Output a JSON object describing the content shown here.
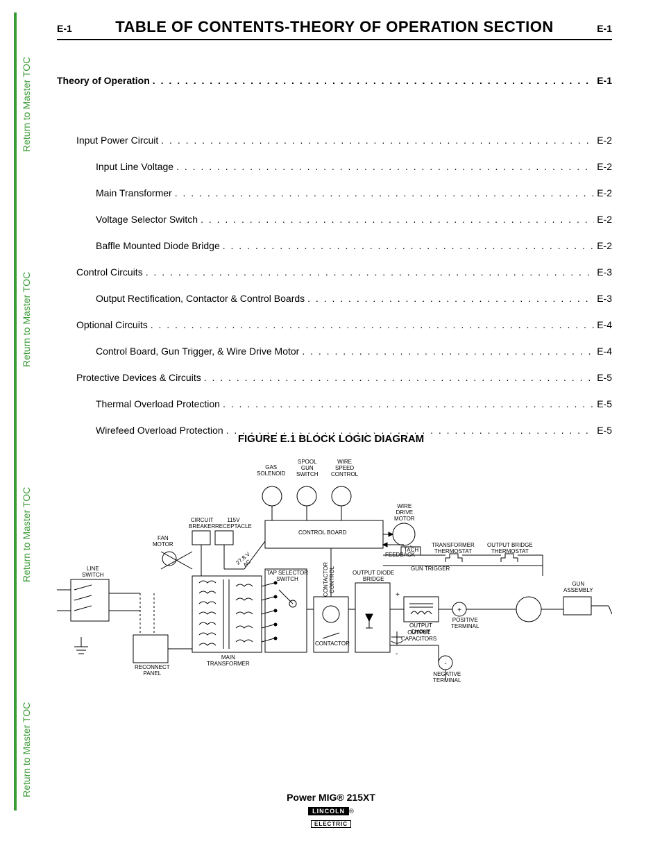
{
  "page_marker": "E-1",
  "title": "TABLE OF CONTENTS-THEORY OF OPERATION SECTION",
  "side_link_label": "Return to Master TOC",
  "toc": [
    {
      "label": "Theory of Operation",
      "page": "E-1",
      "level": 0,
      "bold": true
    },
    {
      "label": "Input Power Circuit",
      "page": "E-2",
      "level": 1
    },
    {
      "label": "Input Line Voltage",
      "page": "E-2",
      "level": 2
    },
    {
      "label": "Main Transformer",
      "page": "E-2",
      "level": 2
    },
    {
      "label": "Voltage Selector Switch",
      "page": "E-2",
      "level": 2
    },
    {
      "label": "Baffle Mounted Diode Bridge",
      "page": "E-2",
      "level": 2
    },
    {
      "label": "Control Circuits",
      "page": "E-3",
      "level": 1
    },
    {
      "label": "Output Rectification, Contactor & Control Boards",
      "page": "E-3",
      "level": 2
    },
    {
      "label": "Optional Circuits",
      "page": "E-4",
      "level": 1
    },
    {
      "label": "Control Board, Gun Trigger, & Wire Drive Motor",
      "page": "E-4",
      "level": 2
    },
    {
      "label": "Protective Devices & Circuits",
      "page": "E-5",
      "level": 1
    },
    {
      "label": "Thermal Overload Protection",
      "page": "E-5",
      "level": 2
    },
    {
      "label": "Wirefeed Overload Protection",
      "page": "E-5",
      "level": 2
    }
  ],
  "figure_title": "FIGURE E.1  BLOCK LOGIC DIAGRAM",
  "diagram": {
    "stroke": "#000000",
    "stroke_width": 1,
    "labels": {
      "gas_solenoid": "GAS\nSOLENOID",
      "spool_gun_switch": "SPOOL\nGUN\nSWITCH",
      "wire_speed_control": "WIRE\nSPEED\nCONTROL",
      "control_board": "CONTROL BOARD",
      "wire_drive_motor": "WIRE\nDRIVE\nMOTOR",
      "circuit_breaker": "CIRCUIT\nBREAKER",
      "receptacle_115v": "115V\nRECEPTACLE",
      "fan_motor": "FAN\nMOTOR",
      "line_switch": "LINE\nSWITCH",
      "tap_selector": "TAP SELECTOR\nSWITCH",
      "contactor_control": "CONTACTOR\nCONTROL",
      "feedback": "FEEDBACK",
      "tach": "TACH",
      "transformer_thermostat": "TRANSFORMER\nTHERMOSTAT",
      "output_bridge_thermostat": "OUTPUT BRIDGE\nTHERMOSTAT",
      "gun_trigger": "GUN TRIGGER",
      "output_diode_bridge": "OUTPUT DIODE\nBRIDGE",
      "contactor": "CONTACTOR",
      "output_choke": "OUTPUT\nCHOKE",
      "output_capacitors": "OUTPUT\nCAPACITORS",
      "positive_terminal": "POSITIVE\nTERMINAL",
      "negative_terminal": "NEGATIVE\nTERMINAL",
      "gun_assembly": "GUN\nASSEMBLY",
      "reconnect_panel": "RECONNECT\nPANEL",
      "main_transformer": "MAIN\nTRANSFORMER",
      "v278": "27.8 V\nAC"
    }
  },
  "footer": {
    "model": "Power MIG® 215XT",
    "brand_top": "LINCOLN",
    "brand_bot": "ELECTRIC"
  },
  "colors": {
    "green": "#3a9b35",
    "black": "#000000",
    "white": "#ffffff"
  }
}
